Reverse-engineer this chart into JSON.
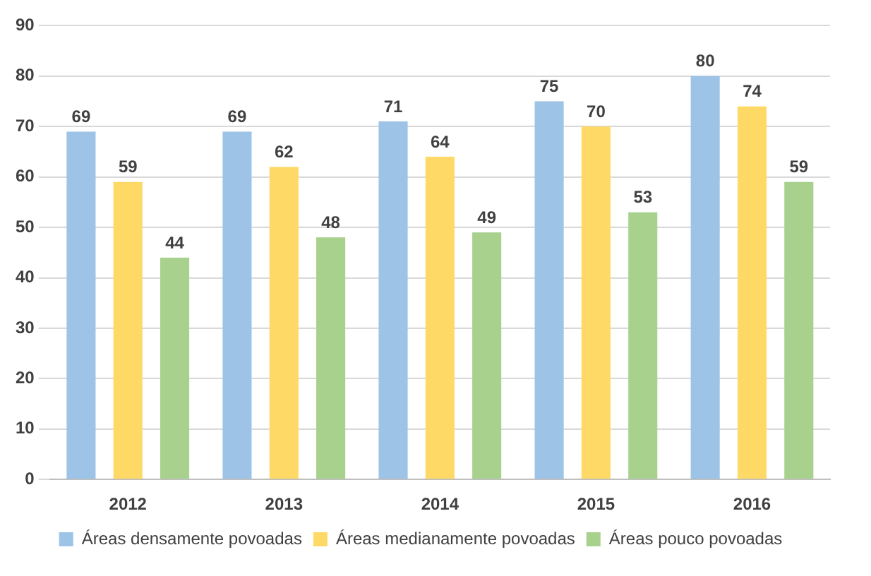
{
  "chart_data": {
    "type": "bar",
    "categories": [
      "2012",
      "2013",
      "2014",
      "2015",
      "2016"
    ],
    "series": [
      {
        "name": "Áreas densamente povoadas",
        "color": "#9dc3e6",
        "values": [
          69,
          69,
          71,
          75,
          80
        ]
      },
      {
        "name": "Áreas medianamente povoadas",
        "color": "#ffd966",
        "values": [
          59,
          62,
          64,
          70,
          74
        ]
      },
      {
        "name": "Áreas pouco povoadas",
        "color": "#a9d18e",
        "values": [
          44,
          48,
          49,
          53,
          59
        ]
      }
    ],
    "ylim": [
      0,
      90
    ],
    "yticks": [
      0,
      10,
      20,
      30,
      40,
      50,
      60,
      70,
      80,
      90
    ],
    "grid": "y",
    "legend": "bottom",
    "data_labels": true
  }
}
